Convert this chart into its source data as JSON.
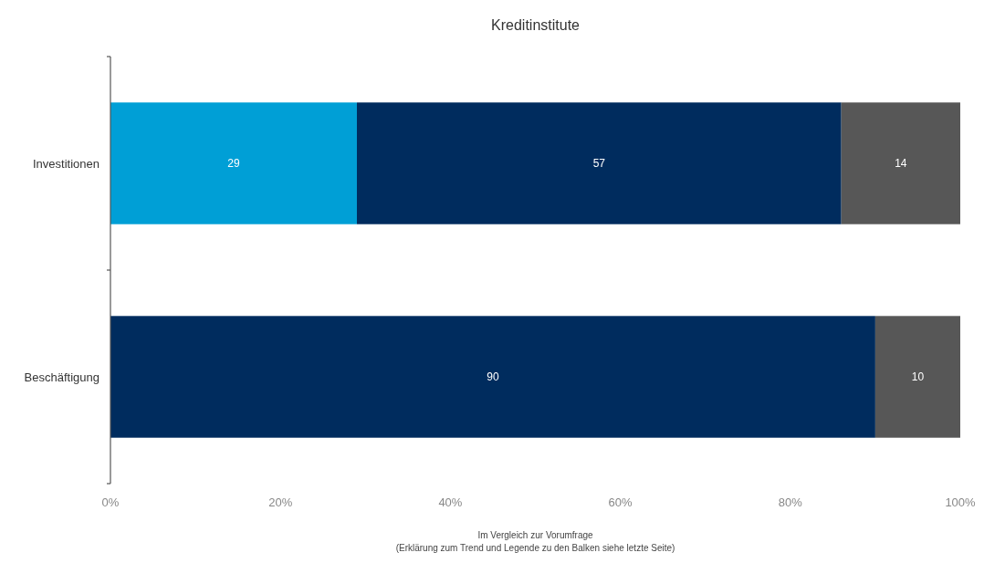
{
  "chart_data": {
    "type": "bar",
    "orientation": "horizontal",
    "stacked": true,
    "title": "Kreditinstitute",
    "categories": [
      "Investitionen",
      "Beschäftigung"
    ],
    "series": [
      {
        "color": "#009fd6",
        "values": [
          29,
          null
        ]
      },
      {
        "color": "#002c5e",
        "values": [
          57,
          90
        ]
      },
      {
        "color": "#575757",
        "values": [
          14,
          10
        ]
      }
    ],
    "xlim": [
      0,
      100
    ],
    "xticks": [
      {
        "value": 0,
        "label": "0%"
      },
      {
        "value": 20,
        "label": "20%"
      },
      {
        "value": 40,
        "label": "40%"
      },
      {
        "value": 60,
        "label": "60%"
      },
      {
        "value": 80,
        "label": "80%"
      },
      {
        "value": 100,
        "label": "100%"
      }
    ],
    "data_labels": true,
    "grid": false,
    "annotations": [
      "Im Vergleich zur Vorumfrage",
      "(Erklärung zum Trend und Legende zu den Balken siehe letzte Seite)"
    ]
  }
}
